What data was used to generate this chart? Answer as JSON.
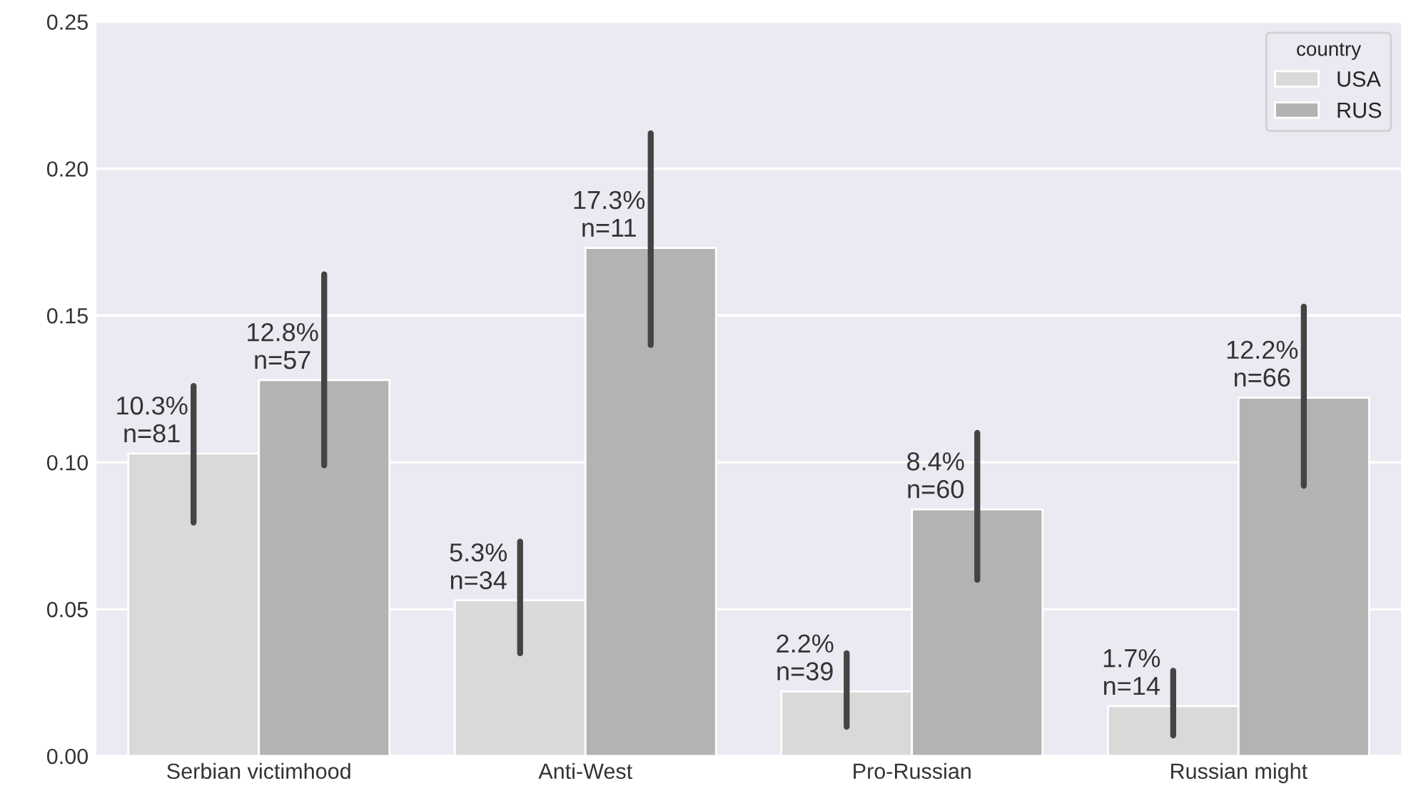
{
  "chart_data": {
    "type": "bar",
    "categories": [
      "Serbian victimhood",
      "Anti-West",
      "Pro-Russian",
      "Russian might"
    ],
    "series": [
      {
        "name": "USA",
        "color": "#d9d9d9",
        "values": [
          0.103,
          0.053,
          0.022,
          0.017
        ],
        "errors": [
          [
            0.0795,
            0.126
          ],
          [
            0.035,
            0.073
          ],
          [
            0.01,
            0.035
          ],
          [
            0.007,
            0.029
          ]
        ],
        "value_labels": [
          "10.3%\nn=81",
          "5.3%\nn=34",
          "2.2%\nn=39",
          "1.7%\nn=14"
        ]
      },
      {
        "name": "RUS",
        "color": "#b3b3b3",
        "values": [
          0.128,
          0.173,
          0.084,
          0.122
        ],
        "errors": [
          [
            0.099,
            0.164
          ],
          [
            0.14,
            0.212
          ],
          [
            0.06,
            0.11
          ],
          [
            0.092,
            0.153
          ]
        ],
        "value_labels": [
          "12.8%\nn=57",
          "17.3%\nn=11",
          "8.4%\nn=60",
          "12.2%\nn=66"
        ]
      }
    ],
    "legend_title": "country",
    "legend": "top right",
    "ylim": [
      0,
      0.25
    ],
    "yticks": [
      {
        "value": 0,
        "label": "0.00"
      },
      {
        "value": 0.05,
        "label": "0.05"
      },
      {
        "value": 0.1,
        "label": "0.10"
      },
      {
        "value": 0.15,
        "label": "0.15"
      },
      {
        "value": 0.2,
        "label": "0.20"
      },
      {
        "value": 0.25,
        "label": "0.25"
      }
    ],
    "grid": "y"
  }
}
